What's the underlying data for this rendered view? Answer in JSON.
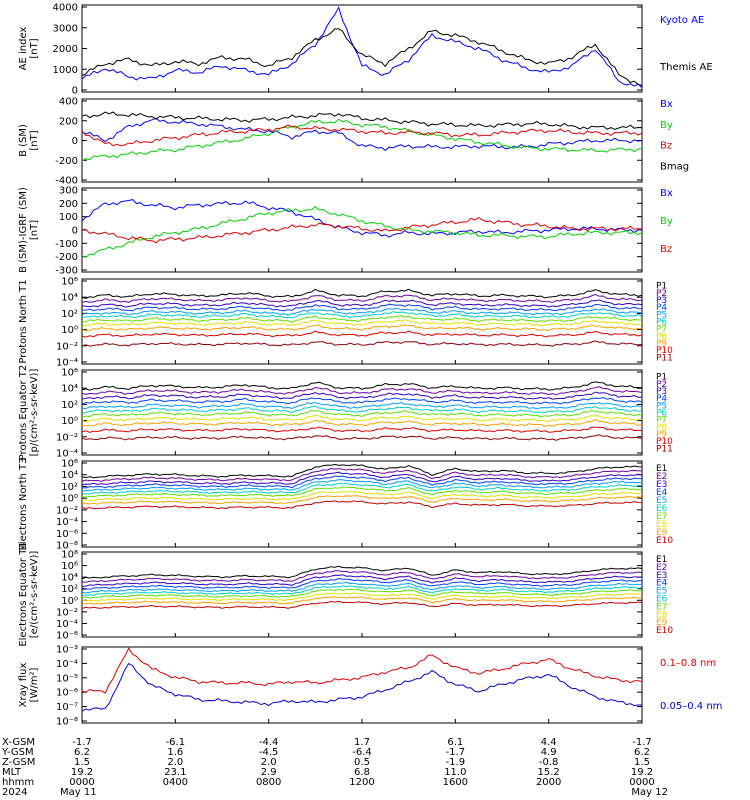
{
  "chart_data": [
    {
      "type": "line",
      "ylabel": "AE index [nT]",
      "yticks": [
        "4000",
        "3000",
        "2000",
        "1000",
        "0"
      ],
      "ylim": [
        0,
        4000
      ],
      "x": [
        0,
        1,
        2,
        3,
        4,
        5,
        6,
        7,
        8,
        9,
        10,
        11,
        12,
        13,
        14,
        15,
        16,
        17,
        18,
        19,
        20,
        21,
        22,
        23,
        24
      ],
      "series": [
        {
          "name": "Kyoto AE",
          "color": "#0000ff",
          "values": [
            600,
            1100,
            700,
            600,
            1000,
            900,
            1200,
            1000,
            800,
            1300,
            2200,
            3800,
            1200,
            800,
            1500,
            2600,
            2300,
            2000,
            1500,
            1100,
            900,
            1200,
            2000,
            500,
            200
          ]
        },
        {
          "name": "Themis AE",
          "color": "#000000",
          "values": [
            800,
            1300,
            1500,
            1200,
            1400,
            1300,
            1600,
            1500,
            1200,
            1600,
            2400,
            2900,
            1700,
            1300,
            2000,
            2800,
            2600,
            2300,
            1900,
            1500,
            1300,
            1600,
            2200,
            800,
            300
          ]
        }
      ]
    },
    {
      "type": "line",
      "ylabel": "B (SM) [nT]",
      "yticks": [
        "400",
        "200",
        "0",
        "-200",
        "-400"
      ],
      "ylim": [
        -450,
        450
      ],
      "x": [
        0,
        1,
        2,
        3,
        4,
        5,
        6,
        7,
        8,
        9,
        10,
        11,
        12,
        13,
        14,
        15,
        16,
        17,
        18,
        19,
        20,
        21,
        22,
        23,
        24
      ],
      "series": [
        {
          "name": "Bx",
          "color": "#0000ff",
          "values": [
            100,
            0,
            150,
            220,
            200,
            180,
            150,
            120,
            100,
            40,
            100,
            80,
            -60,
            -80,
            -60,
            -70,
            -70,
            -60,
            -70,
            -70,
            -40,
            -20,
            0,
            0,
            0
          ]
        },
        {
          "name": "By",
          "color": "#00d000",
          "values": [
            -200,
            -170,
            -150,
            -120,
            -100,
            -60,
            -20,
            20,
            80,
            150,
            200,
            210,
            170,
            150,
            100,
            60,
            20,
            -20,
            -50,
            -80,
            -90,
            -100,
            -110,
            -100,
            -90
          ]
        },
        {
          "name": "Bz",
          "color": "#e00000",
          "values": [
            100,
            -40,
            -40,
            0,
            30,
            60,
            90,
            100,
            120,
            150,
            130,
            120,
            100,
            80,
            90,
            80,
            60,
            60,
            80,
            100,
            110,
            90,
            80,
            80,
            80
          ]
        },
        {
          "name": "Bmag",
          "color": "#000000",
          "values": [
            260,
            290,
            280,
            260,
            250,
            240,
            230,
            220,
            230,
            250,
            270,
            290,
            240,
            220,
            200,
            180,
            170,
            160,
            170,
            180,
            180,
            150,
            140,
            140,
            140
          ]
        }
      ]
    },
    {
      "type": "line",
      "ylabel": "B (SM)-IGRF (SM) [nT]",
      "yticks": [
        "300",
        "200",
        "100",
        "0",
        "-100",
        "-200",
        "-300"
      ],
      "ylim": [
        -320,
        320
      ],
      "x": [
        0,
        1,
        2,
        3,
        4,
        5,
        6,
        7,
        8,
        9,
        10,
        11,
        12,
        13,
        14,
        15,
        16,
        17,
        18,
        19,
        20,
        21,
        22,
        23,
        24
      ],
      "series": [
        {
          "name": "Bx",
          "color": "#0000ff",
          "values": [
            80,
            200,
            220,
            190,
            170,
            190,
            200,
            210,
            170,
            140,
            80,
            20,
            -20,
            -40,
            -20,
            -30,
            -20,
            -10,
            -20,
            -10,
            0,
            10,
            10,
            0,
            0
          ]
        },
        {
          "name": "By",
          "color": "#00d000",
          "values": [
            -200,
            -150,
            -100,
            -50,
            -20,
            10,
            50,
            90,
            130,
            150,
            160,
            120,
            70,
            30,
            0,
            -10,
            -20,
            -40,
            -40,
            -50,
            -50,
            -30,
            -20,
            -20,
            -20
          ]
        },
        {
          "name": "Bz",
          "color": "#e00000",
          "values": [
            0,
            -30,
            -60,
            -80,
            -70,
            -60,
            -40,
            -20,
            0,
            20,
            40,
            30,
            10,
            -10,
            20,
            40,
            60,
            80,
            60,
            40,
            30,
            10,
            10,
            10,
            10
          ]
        }
      ]
    },
    {
      "type": "line",
      "ylabel": "Protons North T1",
      "yticks": [
        "10⁶",
        "10⁴",
        "10²",
        "10⁰",
        "10⁻²",
        "10⁻⁴"
      ],
      "log_range": [
        -5,
        6
      ],
      "x": [
        0,
        1,
        2,
        3,
        4,
        5,
        6,
        7,
        8,
        9,
        10,
        11,
        12,
        13,
        14,
        15,
        16,
        17,
        18,
        19,
        20,
        21,
        22,
        23,
        24
      ],
      "shape": [
        0,
        0.3,
        0.1,
        0.5,
        0.4,
        0.2,
        0.3,
        0.6,
        0.2,
        0.1,
        0.9,
        0.3,
        0.2,
        0.8,
        0.9,
        0.3,
        0.5,
        0.2,
        0.3,
        0.2,
        0.1,
        0.3,
        0.9,
        0.4,
        0.3
      ],
      "channels": [
        {
          "name": "P1",
          "color": "#000000",
          "base": 3.6
        },
        {
          "name": "P2",
          "color": "#7000a0",
          "base": 3.0
        },
        {
          "name": "P3",
          "color": "#3000c0",
          "base": 2.4
        },
        {
          "name": "P4",
          "color": "#0040ff",
          "base": 1.9
        },
        {
          "name": "P5",
          "color": "#00a0ff",
          "base": 1.4
        },
        {
          "name": "P6",
          "color": "#00d0c0",
          "base": 1.0
        },
        {
          "name": "P7",
          "color": "#60e000",
          "base": 0.5
        },
        {
          "name": "P8",
          "color": "#e0e000",
          "base": 0.0
        },
        {
          "name": "P9",
          "color": "#ffa000",
          "base": -0.6
        },
        {
          "name": "P10",
          "color": "#e00000",
          "base": -1.4
        },
        {
          "name": "P11",
          "color": "#900000",
          "base": -2.6
        }
      ]
    },
    {
      "type": "line",
      "ylabel": "Protons Equator T2 [p/(cm²-s-sr-keV)]",
      "yticks": [
        "10⁶",
        "10⁴",
        "10²",
        "10⁰",
        "10⁻²",
        "10⁻⁴"
      ],
      "log_range": [
        -5,
        6
      ],
      "x": [
        0,
        1,
        2,
        3,
        4,
        5,
        6,
        7,
        8,
        9,
        10,
        11,
        12,
        13,
        14,
        15,
        16,
        17,
        18,
        19,
        20,
        21,
        22,
        23,
        24
      ],
      "shape": [
        0,
        0.4,
        0.2,
        0.6,
        0.5,
        0.3,
        0.4,
        0.7,
        0.3,
        0.2,
        1.0,
        0.3,
        0.2,
        0.7,
        0.8,
        0.3,
        0.5,
        0.2,
        0.3,
        0.2,
        0.1,
        0.3,
        1.0,
        0.5,
        0.3
      ],
      "channels": [
        {
          "name": "P1",
          "color": "#000000",
          "base": 3.4
        },
        {
          "name": "P2",
          "color": "#7000a0",
          "base": 2.8
        },
        {
          "name": "P3",
          "color": "#3000c0",
          "base": 2.2
        },
        {
          "name": "P4",
          "color": "#0040ff",
          "base": 1.6
        },
        {
          "name": "P5",
          "color": "#00a0ff",
          "base": 1.0
        },
        {
          "name": "P6",
          "color": "#00d0c0",
          "base": 0.5
        },
        {
          "name": "P7",
          "color": "#60e000",
          "base": 0.0
        },
        {
          "name": "P8",
          "color": "#e0e000",
          "base": -0.6
        },
        {
          "name": "P9",
          "color": "#ffa000",
          "base": -1.2
        },
        {
          "name": "P10",
          "color": "#e00000",
          "base": -2.0
        },
        {
          "name": "P11",
          "color": "#900000",
          "base": -3.0
        }
      ]
    },
    {
      "type": "line",
      "ylabel": "Electrons North T3",
      "yticks": [
        "10⁶",
        "10⁴",
        "10²",
        "10⁰",
        "10⁻²",
        "10⁻⁴",
        "10⁻⁶",
        "10⁻⁸"
      ],
      "log_range": [
        -8.5,
        6
      ],
      "x": [
        0,
        1,
        2,
        3,
        4,
        5,
        6,
        7,
        8,
        9,
        10,
        11,
        12,
        13,
        14,
        15,
        16,
        17,
        18,
        19,
        20,
        21,
        22,
        23,
        24
      ],
      "shape": [
        0,
        0.2,
        0.4,
        0.6,
        0.5,
        0.3,
        0.2,
        0.4,
        0.3,
        0.2,
        1.8,
        2.2,
        2.0,
        1.4,
        2.0,
        0.5,
        1.5,
        1.0,
        1.2,
        0.8,
        0.7,
        0.9,
        1.5,
        1.8,
        1.8
      ],
      "channels": [
        {
          "name": "E1",
          "color": "#000000",
          "base": 3.2
        },
        {
          "name": "E2",
          "color": "#7000a0",
          "base": 2.6
        },
        {
          "name": "E3",
          "color": "#3000c0",
          "base": 2.0
        },
        {
          "name": "E4",
          "color": "#0040ff",
          "base": 1.5
        },
        {
          "name": "E5",
          "color": "#00a0ff",
          "base": 1.0
        },
        {
          "name": "E6",
          "color": "#00d0c0",
          "base": 0.5
        },
        {
          "name": "E7",
          "color": "#60e000",
          "base": 0.0
        },
        {
          "name": "E8",
          "color": "#e0e000",
          "base": -0.6
        },
        {
          "name": "E9",
          "color": "#ffa000",
          "base": -1.2
        },
        {
          "name": "E10",
          "color": "#c00000",
          "base": -2.0
        }
      ]
    },
    {
      "type": "line",
      "ylabel": "Electrons Equator T4 [e/(cm²-s-sr-keV)]",
      "yticks": [
        "10⁸",
        "10⁶",
        "10⁴",
        "10²",
        "10⁰",
        "10⁻²",
        "10⁻⁴",
        "10⁻⁶"
      ],
      "log_range": [
        -7,
        9
      ],
      "x": [
        0,
        1,
        2,
        3,
        4,
        5,
        6,
        7,
        8,
        9,
        10,
        11,
        12,
        13,
        14,
        15,
        16,
        17,
        18,
        19,
        20,
        21,
        22,
        23,
        24
      ],
      "shape": [
        0,
        0.3,
        0.5,
        0.7,
        0.6,
        0.4,
        0.3,
        0.5,
        0.4,
        0.3,
        1.8,
        2.2,
        2.0,
        1.5,
        2.0,
        0.6,
        1.6,
        1.1,
        1.3,
        0.9,
        0.8,
        1.0,
        1.6,
        1.9,
        1.9
      ],
      "channels": [
        {
          "name": "E1",
          "color": "#000000",
          "base": 4.0
        },
        {
          "name": "E2",
          "color": "#7000a0",
          "base": 3.3
        },
        {
          "name": "E3",
          "color": "#3000c0",
          "base": 2.6
        },
        {
          "name": "E4",
          "color": "#0040ff",
          "base": 2.0
        },
        {
          "name": "E5",
          "color": "#00a0ff",
          "base": 1.4
        },
        {
          "name": "E6",
          "color": "#00d0c0",
          "base": 0.9
        },
        {
          "name": "E7",
          "color": "#60e000",
          "base": 0.4
        },
        {
          "name": "E8",
          "color": "#e0e000",
          "base": -0.2
        },
        {
          "name": "E9",
          "color": "#ffa000",
          "base": -0.8
        },
        {
          "name": "E10",
          "color": "#c00000",
          "base": -1.6
        }
      ]
    },
    {
      "type": "line",
      "ylabel": "Xray flux [W/m²]",
      "yticks": [
        "10⁻³",
        "10⁻⁴",
        "10⁻⁵",
        "10⁻⁶",
        "10⁻⁷",
        "10⁻⁸"
      ],
      "log_range": [
        -8.5,
        -3
      ],
      "x": [
        0,
        1,
        2,
        3,
        4,
        5,
        6,
        7,
        8,
        9,
        10,
        11,
        12,
        13,
        14,
        15,
        16,
        17,
        18,
        19,
        20,
        21,
        22,
        23,
        24
      ],
      "series": [
        {
          "name": "0.1–0.8 nm",
          "color": "#e00000",
          "logvalues": [
            -6.2,
            -6.2,
            -3.2,
            -4.6,
            -5.2,
            -5.5,
            -5.6,
            -5.6,
            -5.7,
            -5.5,
            -5.6,
            -5.4,
            -5.2,
            -4.8,
            -4.5,
            -3.6,
            -4.5,
            -4.9,
            -4.6,
            -4.2,
            -3.9,
            -4.6,
            -5.1,
            -5.4,
            -5.5
          ]
        },
        {
          "name": "0.05–0.4 nm",
          "color": "#0000d0",
          "logvalues": [
            -7.5,
            -7.5,
            -4.2,
            -5.8,
            -6.4,
            -6.8,
            -6.9,
            -7.0,
            -7.1,
            -6.9,
            -7.0,
            -6.8,
            -6.6,
            -6.1,
            -5.5,
            -4.8,
            -5.7,
            -6.2,
            -5.7,
            -5.3,
            -5.0,
            -5.9,
            -6.6,
            -7.0,
            -7.2
          ]
        }
      ]
    }
  ],
  "xaxis": {
    "rows": [
      {
        "label": "X-GSM",
        "values": [
          "-1.7",
          "-6.1",
          "-4.4",
          "1.7",
          "6.1",
          "4.4",
          "-1.7"
        ]
      },
      {
        "label": "Y-GSM",
        "values": [
          "6.2",
          "1.6",
          "-4.5",
          "-6.4",
          "-1.7",
          "4.9",
          "6.2"
        ]
      },
      {
        "label": "Z-GSM",
        "values": [
          "1.5",
          "2.0",
          "2.0",
          "0.5",
          "-1.9",
          "-0.8",
          "1.5"
        ]
      },
      {
        "label": "MLT",
        "values": [
          "19.2",
          "23.1",
          "2.9",
          "6.8",
          "11.0",
          "15.2",
          "19.2"
        ]
      },
      {
        "label": "hhmm",
        "values": [
          "0000",
          "0400",
          "0800",
          "1200",
          "1600",
          "2000",
          "0000"
        ]
      },
      {
        "label": "2024",
        "values": [
          "May 11",
          "",
          "",
          "",
          "",
          "",
          "May 12"
        ]
      }
    ]
  }
}
